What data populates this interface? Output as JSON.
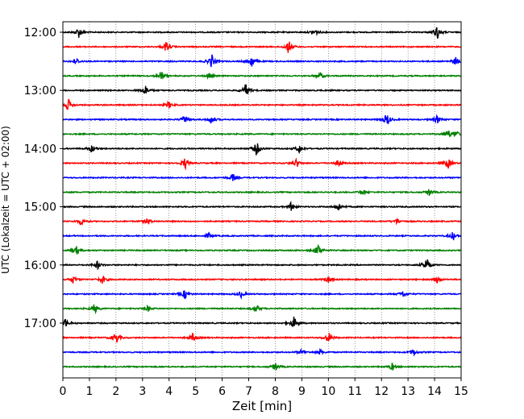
{
  "chart_data": {
    "type": "line",
    "title": "",
    "xlabel": "Zeit  [min]",
    "ylabel": "UTC (Lokalzeit = UTC + 02:00)",
    "xlim": [
      0,
      15
    ],
    "x_ticks": [
      0,
      1,
      2,
      3,
      4,
      5,
      6,
      7,
      8,
      9,
      10,
      11,
      12,
      13,
      14,
      15
    ],
    "grid": "vertical dotted lines at each minute",
    "row_interval_min": 15,
    "y_ticks": [
      {
        "label": "12:00",
        "row": 0
      },
      {
        "label": "13:00",
        "row": 4
      },
      {
        "label": "14:00",
        "row": 8
      },
      {
        "label": "15:00",
        "row": 12
      },
      {
        "label": "16:00",
        "row": 16
      },
      {
        "label": "17:00",
        "row": 20
      }
    ],
    "colors": [
      "#000000",
      "#ff0000",
      "#0000ff",
      "#008000"
    ],
    "traces": [
      {
        "start": "12:00",
        "color": "#000000",
        "events": [
          [
            0.6,
            0.8
          ],
          [
            9.5,
            0.5
          ],
          [
            14.1,
            1.0
          ]
        ]
      },
      {
        "start": "12:15",
        "color": "#ff0000",
        "events": [
          [
            3.9,
            0.8
          ],
          [
            8.5,
            0.9
          ]
        ]
      },
      {
        "start": "12:30",
        "color": "#0000ff",
        "events": [
          [
            0.5,
            0.5
          ],
          [
            5.6,
            1.0
          ],
          [
            7.1,
            1.0
          ],
          [
            14.8,
            0.6
          ]
        ]
      },
      {
        "start": "12:45",
        "color": "#008000",
        "events": [
          [
            3.7,
            0.7
          ],
          [
            5.5,
            0.4
          ],
          [
            9.7,
            0.5
          ]
        ]
      },
      {
        "start": "13:00",
        "color": "#000000",
        "events": [
          [
            3.1,
            0.8
          ],
          [
            6.9,
            1.0
          ]
        ]
      },
      {
        "start": "13:15",
        "color": "#ff0000",
        "events": [
          [
            0.2,
            0.9
          ],
          [
            4.0,
            0.5
          ]
        ]
      },
      {
        "start": "13:30",
        "color": "#0000ff",
        "events": [
          [
            4.6,
            0.6
          ],
          [
            5.6,
            0.6
          ],
          [
            12.2,
            1.0
          ],
          [
            14.1,
            0.6
          ]
        ]
      },
      {
        "start": "13:45",
        "color": "#008000",
        "events": [
          [
            14.5,
            0.6
          ],
          [
            14.8,
            0.5
          ]
        ]
      },
      {
        "start": "14:00",
        "color": "#000000",
        "events": [
          [
            1.1,
            0.6
          ],
          [
            7.3,
            1.0
          ],
          [
            8.9,
            0.6
          ]
        ]
      },
      {
        "start": "14:15",
        "color": "#ff0000",
        "events": [
          [
            4.6,
            0.8
          ],
          [
            8.8,
            0.6
          ],
          [
            10.4,
            0.5
          ],
          [
            14.5,
            0.8
          ]
        ]
      },
      {
        "start": "14:30",
        "color": "#0000ff",
        "events": [
          [
            6.4,
            0.6
          ]
        ]
      },
      {
        "start": "14:45",
        "color": "#008000",
        "events": [
          [
            11.3,
            0.4
          ],
          [
            13.8,
            0.5
          ]
        ]
      },
      {
        "start": "15:00",
        "color": "#000000",
        "events": [
          [
            8.6,
            0.6
          ],
          [
            10.4,
            0.6
          ]
        ]
      },
      {
        "start": "15:15",
        "color": "#ff0000",
        "events": [
          [
            0.7,
            0.5
          ],
          [
            3.2,
            0.5
          ],
          [
            12.6,
            0.4
          ]
        ]
      },
      {
        "start": "15:30",
        "color": "#0000ff",
        "events": [
          [
            5.5,
            0.4
          ],
          [
            14.7,
            0.6
          ]
        ]
      },
      {
        "start": "15:45",
        "color": "#008000",
        "events": [
          [
            0.5,
            0.6
          ],
          [
            9.6,
            1.0
          ]
        ]
      },
      {
        "start": "16:00",
        "color": "#000000",
        "events": [
          [
            1.3,
            0.6
          ],
          [
            13.7,
            1.0
          ]
        ]
      },
      {
        "start": "16:15",
        "color": "#ff0000",
        "events": [
          [
            0.4,
            0.6
          ],
          [
            1.5,
            0.6
          ],
          [
            10.0,
            0.5
          ],
          [
            14.1,
            0.5
          ]
        ]
      },
      {
        "start": "16:30",
        "color": "#0000ff",
        "events": [
          [
            4.6,
            0.7
          ],
          [
            6.7,
            0.5
          ],
          [
            12.8,
            0.5
          ]
        ]
      },
      {
        "start": "16:45",
        "color": "#008000",
        "events": [
          [
            1.2,
            0.7
          ],
          [
            3.2,
            0.4
          ],
          [
            7.3,
            0.5
          ]
        ]
      },
      {
        "start": "17:00",
        "color": "#000000",
        "events": [
          [
            0.1,
            0.6
          ],
          [
            8.7,
            0.9
          ]
        ]
      },
      {
        "start": "17:15",
        "color": "#ff0000",
        "events": [
          [
            2.0,
            0.9
          ],
          [
            4.9,
            0.6
          ],
          [
            10.0,
            0.8
          ]
        ]
      },
      {
        "start": "17:30",
        "color": "#0000ff",
        "events": [
          [
            9.0,
            0.4
          ],
          [
            9.7,
            0.4
          ],
          [
            13.2,
            0.5
          ]
        ]
      },
      {
        "start": "17:45",
        "color": "#008000",
        "events": [
          [
            8.0,
            0.6
          ],
          [
            12.4,
            0.5
          ]
        ]
      }
    ]
  }
}
